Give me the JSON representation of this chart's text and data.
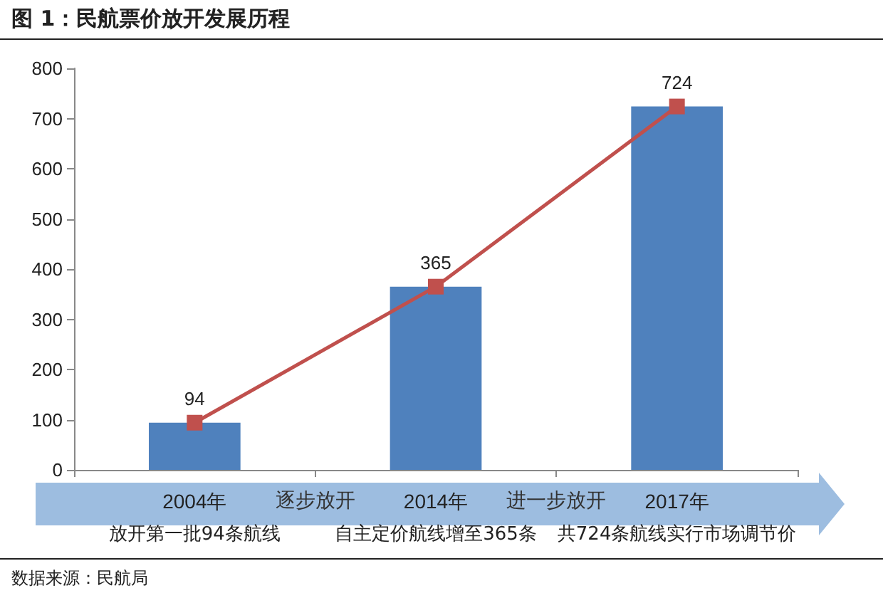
{
  "chart_data": {
    "type": "bar",
    "title": "图 1：民航票价放开发展历程",
    "categories": [
      "2004年",
      "2014年",
      "2017年"
    ],
    "series": [
      {
        "color": "#4f81bd",
        "values": [
          94,
          365,
          724
        ]
      },
      {
        "type": "line",
        "color": "#c0504d",
        "values": [
          94,
          365,
          724
        ],
        "value_labels": [
          "94",
          "365",
          "724"
        ],
        "marker": "square",
        "line_style": "solid"
      }
    ],
    "ylim": [
      0,
      800
    ],
    "yticks": [
      0,
      100,
      200,
      300,
      400,
      500,
      600,
      700,
      800
    ],
    "grid": false,
    "annotations": [
      "逐步放开",
      "进一步放开",
      "放开第一批94条航线",
      "自主定价航线增至365条",
      "共724条航线实行市场调节价",
      "数据来源：民航局"
    ]
  }
}
